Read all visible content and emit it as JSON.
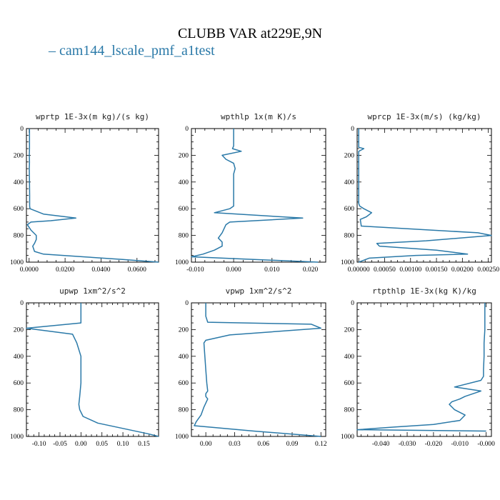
{
  "title": "CLUBB VAR at229E,9N",
  "legend": {
    "label": "cam144_lscale_pmf_a1test",
    "color": "#2a79a8"
  },
  "chart_data": [
    {
      "type": "line",
      "title": "wprtp  1E-3x(m kg)/(s kg)",
      "xlim": [
        -0.0015,
        0.072
      ],
      "ylim": [
        1000,
        0
      ],
      "xticks": [
        "0.0000",
        "0.0200",
        "0.0400",
        "0.0600"
      ],
      "xtick_values": [
        0,
        0.02,
        0.04,
        0.06
      ],
      "yticks": [
        "0",
        "200",
        "400",
        "600",
        "800",
        "1000"
      ],
      "series": [
        {
          "color": "#2a79a8",
          "x": [
            0.0002,
            0.0002,
            0.0001,
            0.0002,
            0.0001,
            0.0002,
            0.0003,
            0.0003,
            0.0005,
            0.008,
            0.026,
            0.012,
            0.001,
            -0.001,
            0.001,
            0.004,
            0.004,
            0.003,
            0.002,
            0.003,
            0.008,
            0.03,
            0.052,
            0.072
          ],
          "y": [
            0,
            150,
            200,
            250,
            300,
            400,
            500,
            580,
            600,
            640,
            670,
            690,
            700,
            720,
            760,
            800,
            830,
            860,
            880,
            920,
            940,
            960,
            980,
            1000
          ]
        }
      ]
    },
    {
      "type": "line",
      "title": "wpthlp  1x(m K)/s",
      "xlim": [
        -0.011,
        0.024
      ],
      "ylim": [
        1000,
        0
      ],
      "xticks": [
        "-0.010",
        "0.000",
        "0.010",
        "0.020"
      ],
      "xtick_values": [
        -0.01,
        0,
        0.01,
        0.02
      ],
      "yticks": [
        "0",
        "200",
        "400",
        "600",
        "800",
        "1000"
      ],
      "series": [
        {
          "color": "#2a79a8",
          "x": [
            0.0,
            0.0,
            -0.0003,
            0.002,
            -0.003,
            -0.002,
            0.0,
            0.0004,
            0.0,
            0.0,
            0.0,
            0.0,
            -0.001,
            -0.005,
            0.018,
            -0.001,
            -0.002,
            -0.003,
            -0.004,
            -0.003,
            -0.003,
            -0.005,
            -0.008,
            -0.011,
            0.022
          ],
          "y": [
            0,
            130,
            150,
            170,
            200,
            230,
            260,
            300,
            340,
            400,
            500,
            580,
            600,
            630,
            670,
            700,
            720,
            780,
            820,
            850,
            880,
            910,
            940,
            960,
            1000
          ]
        }
      ]
    },
    {
      "type": "line",
      "title": "wprcp  1E-3x(m/s) (kg/kg)",
      "xlim": [
        -3e-05,
        0.00256
      ],
      "ylim": [
        1000,
        0
      ],
      "xticks": [
        "0.00000",
        "0.00050",
        "0.00100",
        "0.00150",
        "0.00200",
        "0.00250"
      ],
      "xtick_values": [
        0,
        0.0005,
        0.001,
        0.0015,
        0.002,
        0.0025
      ],
      "yticks": [
        "0",
        "200",
        "400",
        "600",
        "800",
        "1000"
      ],
      "series": [
        {
          "color": "#2a79a8",
          "x": [
            0.0,
            0.0,
            0.0,
            0.0001,
            0.0,
            0.0,
            0.0,
            0.0,
            2e-05,
            0.0001,
            0.00025,
            0.00015,
            3e-05,
            5e-05,
            0.0023,
            0.00256,
            0.0013,
            0.00035,
            0.0004,
            0.0015,
            0.0021,
            0.0011,
            0.0002,
            0.0
          ],
          "y": [
            0,
            100,
            140,
            150,
            170,
            200,
            400,
            560,
            580,
            600,
            630,
            660,
            680,
            730,
            780,
            800,
            840,
            860,
            880,
            910,
            940,
            950,
            970,
            1000
          ]
        }
      ]
    },
    {
      "type": "line",
      "title": "upwp  1xm^2/s^2",
      "xlim": [
        -0.13,
        0.185
      ],
      "ylim": [
        1000,
        0
      ],
      "xticks": [
        "-0.10",
        "-0.05",
        "0.00",
        "0.05",
        "0.10",
        "0.15"
      ],
      "xtick_values": [
        -0.1,
        -0.05,
        0,
        0.05,
        0.1,
        0.15
      ],
      "yticks": [
        "0",
        "200",
        "400",
        "600",
        "800",
        "1000"
      ],
      "series": [
        {
          "color": "#2a79a8",
          "x": [
            0.0,
            0.0,
            0.0,
            -0.13,
            -0.02,
            -0.01,
            0.0,
            0.0,
            0.0,
            -0.003,
            -0.005,
            -0.003,
            0.005,
            0.04,
            0.1,
            0.16,
            0.185
          ],
          "y": [
            0,
            100,
            150,
            190,
            235,
            300,
            400,
            500,
            600,
            700,
            760,
            800,
            850,
            900,
            940,
            980,
            1000
          ]
        }
      ]
    },
    {
      "type": "line",
      "title": "vpwp  1xm^2/s^2",
      "xlim": [
        -0.015,
        0.125
      ],
      "ylim": [
        1000,
        0
      ],
      "xticks": [
        "0.00",
        "0.03",
        "0.06",
        "0.09",
        "0.12"
      ],
      "xtick_values": [
        0,
        0.03,
        0.06,
        0.09,
        0.12
      ],
      "yticks": [
        "0",
        "200",
        "400",
        "600",
        "800",
        "1000"
      ],
      "series": [
        {
          "color": "#2a79a8",
          "x": [
            0.0,
            0.0,
            0.002,
            0.11,
            0.12,
            0.025,
            0.0,
            -0.002,
            -0.001,
            0.0,
            0.001,
            0.002,
            0.0,
            0.0,
            0.002,
            -0.002,
            -0.005,
            -0.01,
            -0.012,
            0.05,
            0.12
          ],
          "y": [
            0,
            100,
            145,
            160,
            190,
            240,
            280,
            300,
            400,
            500,
            600,
            660,
            680,
            700,
            720,
            780,
            840,
            890,
            920,
            960,
            1000
          ]
        }
      ]
    },
    {
      "type": "line",
      "title": "rtpthlp  1E-3x(kg K)/kg",
      "xlim": [
        -0.049,
        0.002
      ],
      "ylim": [
        1000,
        0
      ],
      "xticks": [
        "-0.040",
        "-0.030",
        "-0.020",
        "-0.010",
        "-0.000"
      ],
      "xtick_values": [
        -0.04,
        -0.03,
        -0.02,
        -0.01,
        0
      ],
      "yticks": [
        "0",
        "200",
        "400",
        "600",
        "800",
        "1000"
      ],
      "series": [
        {
          "color": "#2a79a8",
          "x": [
            -0.0005,
            -0.0005,
            -0.0008,
            -0.0008,
            -0.001,
            -0.001,
            -0.002,
            -0.012,
            -0.002,
            -0.008,
            -0.01,
            -0.013,
            -0.014,
            -0.012,
            -0.008,
            -0.01,
            -0.02,
            -0.035,
            -0.049,
            0.0
          ],
          "y": [
            0,
            200,
            300,
            400,
            500,
            550,
            580,
            630,
            660,
            700,
            720,
            740,
            760,
            800,
            840,
            880,
            910,
            930,
            950,
            960
          ]
        }
      ]
    }
  ]
}
